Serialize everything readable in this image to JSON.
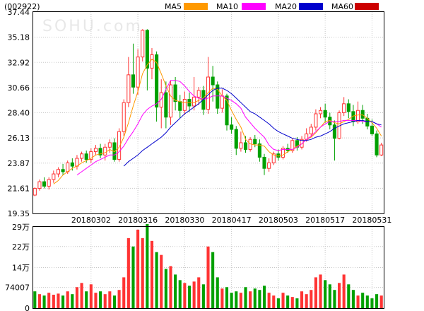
{
  "header": {
    "stock_code": "(002922)",
    "watermark": "SOHU.com"
  },
  "legend": [
    {
      "label": "MA5",
      "color": "#ff9900"
    },
    {
      "label": "MA10",
      "color": "#ff00ff"
    },
    {
      "label": "MA20",
      "color": "#0000cc"
    },
    {
      "label": "MA60",
      "color": "#cc0000"
    }
  ],
  "colors": {
    "up": "#ff3333",
    "down": "#00a000",
    "grid": "#c8c8c8",
    "border": "#000000"
  },
  "chart_data": [
    {
      "type": "candlestick",
      "title": "",
      "ylim": [
        19.35,
        37.44
      ],
      "y_ticks": [
        "37.44",
        "35.18",
        "32.92",
        "30.66",
        "28.40",
        "26.13",
        "23.87",
        "21.61",
        "19.35"
      ],
      "x_ticks": [
        {
          "label": "20180302",
          "index": 12
        },
        {
          "label": "20180316",
          "index": 22
        },
        {
          "label": "20180330",
          "index": 32
        },
        {
          "label": "20180417",
          "index": 42
        },
        {
          "label": "20180503",
          "index": 52
        },
        {
          "label": "20180517",
          "index": 62
        },
        {
          "label": "20180531",
          "index": 72
        }
      ],
      "candles": [
        [
          21.0,
          21.6,
          20.9,
          21.7
        ],
        [
          21.6,
          22.2,
          21.4,
          22.4
        ],
        [
          22.2,
          21.8,
          21.6,
          22.6
        ],
        [
          21.8,
          22.4,
          21.5,
          22.6
        ],
        [
          22.4,
          22.9,
          22.1,
          23.2
        ],
        [
          22.9,
          23.3,
          22.6,
          23.5
        ],
        [
          23.3,
          23.1,
          22.8,
          23.8
        ],
        [
          23.1,
          23.9,
          22.9,
          24.1
        ],
        [
          23.9,
          23.6,
          23.2,
          24.3
        ],
        [
          23.6,
          24.3,
          23.3,
          24.6
        ],
        [
          24.3,
          24.7,
          24.0,
          24.9
        ],
        [
          24.7,
          24.2,
          23.9,
          25.0
        ],
        [
          24.2,
          24.9,
          23.9,
          25.2
        ],
        [
          24.9,
          25.2,
          24.6,
          25.5
        ],
        [
          25.2,
          24.6,
          24.3,
          25.6
        ],
        [
          24.6,
          25.3,
          24.1,
          25.6
        ],
        [
          25.3,
          25.7,
          24.8,
          26.0
        ],
        [
          25.7,
          24.2,
          24.0,
          26.1
        ],
        [
          24.2,
          26.7,
          24.0,
          27.0
        ],
        [
          26.7,
          29.3,
          26.3,
          29.6
        ],
        [
          29.3,
          31.8,
          28.9,
          33.4
        ],
        [
          31.8,
          30.7,
          30.1,
          34.6
        ],
        [
          30.7,
          33.4,
          30.0,
          34.1
        ],
        [
          33.4,
          35.8,
          33.0,
          35.9
        ],
        [
          35.8,
          32.4,
          30.4,
          35.9
        ],
        [
          32.4,
          33.6,
          31.4,
          34.2
        ],
        [
          33.6,
          28.9,
          27.6,
          33.9
        ],
        [
          28.9,
          30.2,
          27.0,
          31.4
        ],
        [
          30.2,
          28.0,
          27.0,
          31.2
        ],
        [
          28.0,
          30.9,
          27.3,
          31.3
        ],
        [
          30.9,
          29.4,
          28.6,
          31.6
        ],
        [
          29.4,
          28.6,
          27.9,
          30.0
        ],
        [
          28.6,
          29.6,
          28.2,
          30.3
        ],
        [
          29.6,
          29.0,
          28.5,
          30.2
        ],
        [
          29.0,
          29.8,
          28.6,
          31.6
        ],
        [
          29.8,
          30.4,
          29.1,
          30.7
        ],
        [
          30.4,
          28.7,
          28.2,
          30.8
        ],
        [
          28.7,
          31.6,
          28.3,
          33.4
        ],
        [
          31.6,
          30.9,
          29.4,
          32.6
        ],
        [
          30.9,
          28.8,
          28.3,
          31.2
        ],
        [
          28.8,
          29.9,
          28.4,
          30.5
        ],
        [
          29.9,
          27.3,
          26.8,
          30.1
        ],
        [
          27.3,
          26.9,
          26.5,
          28.0
        ],
        [
          26.9,
          25.2,
          24.6,
          27.2
        ],
        [
          25.2,
          25.7,
          24.9,
          26.7
        ],
        [
          25.7,
          25.1,
          24.8,
          26.3
        ],
        [
          25.1,
          26.0,
          24.9,
          26.2
        ],
        [
          26.0,
          25.6,
          25.3,
          26.4
        ],
        [
          25.6,
          24.4,
          24.0,
          26.0
        ],
        [
          24.4,
          23.4,
          22.8,
          24.7
        ],
        [
          23.4,
          23.9,
          23.1,
          24.3
        ],
        [
          23.9,
          24.7,
          23.7,
          24.9
        ],
        [
          24.7,
          24.4,
          24.1,
          25.1
        ],
        [
          24.4,
          25.2,
          24.2,
          25.4
        ],
        [
          25.2,
          25.0,
          24.8,
          25.6
        ],
        [
          25.0,
          25.9,
          24.8,
          26.1
        ],
        [
          25.9,
          25.3,
          25.0,
          26.2
        ],
        [
          25.3,
          26.0,
          25.1,
          26.3
        ],
        [
          26.0,
          26.5,
          25.8,
          27.0
        ],
        [
          26.5,
          27.1,
          26.2,
          27.4
        ],
        [
          27.1,
          28.3,
          26.8,
          28.7
        ],
        [
          28.3,
          28.6,
          27.9,
          28.9
        ],
        [
          28.6,
          28.0,
          27.5,
          29.2
        ],
        [
          28.0,
          27.3,
          26.9,
          28.4
        ],
        [
          27.3,
          26.1,
          24.1,
          27.7
        ],
        [
          26.1,
          28.4,
          26.0,
          28.6
        ],
        [
          28.4,
          29.2,
          28.1,
          29.8
        ],
        [
          29.2,
          28.5,
          27.9,
          29.6
        ],
        [
          28.5,
          27.6,
          27.2,
          29.1
        ],
        [
          27.6,
          28.6,
          27.4,
          29.4
        ],
        [
          28.6,
          27.9,
          27.4,
          29.1
        ],
        [
          27.9,
          27.2,
          26.9,
          28.3
        ],
        [
          27.2,
          26.5,
          26.3,
          27.8
        ],
        [
          26.5,
          24.6,
          24.4,
          26.8
        ],
        [
          24.6,
          25.5,
          24.5,
          25.7
        ]
      ],
      "series": [
        {
          "name": "MA5",
          "values": [
            null,
            null,
            null,
            null,
            22.0,
            22.3,
            22.8,
            23.1,
            23.4,
            23.6,
            23.9,
            24.1,
            24.3,
            24.6,
            24.7,
            24.8,
            25.1,
            24.9,
            25.3,
            26.2,
            27.5,
            29.0,
            30.3,
            31.9,
            32.7,
            33.2,
            32.9,
            31.9,
            30.8,
            29.9,
            29.5,
            29.4,
            29.3,
            29.3,
            29.3,
            29.5,
            29.7,
            30.2,
            30.6,
            30.5,
            29.9,
            29.5,
            28.6,
            27.8,
            27.1,
            26.0,
            25.6,
            25.5,
            25.5,
            25.4,
            24.9,
            24.6,
            24.5,
            24.6,
            24.9,
            25.1,
            25.4,
            25.6,
            26.0,
            26.2,
            26.6,
            27.1,
            27.6,
            27.7,
            27.5,
            27.4,
            27.6,
            27.8,
            28.1,
            28.2,
            28.2,
            27.9,
            27.5,
            27.0,
            26.3
          ]
        },
        {
          "name": "MA10",
          "values": [
            null,
            null,
            null,
            null,
            null,
            null,
            null,
            null,
            null,
            22.8,
            23.1,
            23.4,
            23.7,
            24.0,
            24.2,
            24.4,
            24.6,
            24.6,
            24.9,
            25.4,
            26.1,
            26.7,
            27.4,
            28.2,
            28.7,
            29.0,
            29.2,
            29.6,
            30.5,
            31.3,
            31.3,
            31.2,
            30.8,
            30.3,
            29.9,
            29.7,
            29.6,
            29.7,
            29.9,
            29.9,
            29.9,
            29.7,
            29.5,
            29.2,
            28.8,
            28.0,
            27.5,
            27.0,
            26.6,
            26.2,
            25.5,
            25.1,
            25.0,
            25.1,
            25.1,
            25.1,
            25.3,
            25.6,
            26.0,
            26.3,
            26.7,
            27.1,
            27.4,
            27.6,
            27.6,
            27.6,
            27.7,
            27.7,
            27.7,
            27.7,
            27.6,
            27.6,
            27.6,
            27.4,
            27.1
          ]
        },
        {
          "name": "MA20",
          "values": [
            null,
            null,
            null,
            null,
            null,
            null,
            null,
            null,
            null,
            null,
            null,
            null,
            null,
            null,
            null,
            null,
            null,
            null,
            null,
            23.6,
            24.0,
            24.3,
            24.6,
            25.0,
            25.3,
            25.6,
            25.9,
            26.2,
            26.6,
            27.1,
            27.5,
            27.9,
            28.3,
            28.6,
            28.9,
            29.2,
            29.6,
            30.0,
            30.4,
            30.6,
            30.6,
            30.4,
            30.1,
            29.7,
            29.3,
            28.9,
            28.5,
            28.3,
            28.0,
            27.7,
            27.4,
            27.0,
            26.7,
            26.5,
            26.3,
            26.1,
            26.0,
            25.9,
            25.9,
            26.0,
            26.2,
            26.3,
            26.5,
            26.7,
            27.0,
            27.2,
            27.4,
            27.5,
            27.6,
            27.7,
            27.7,
            27.6,
            27.6,
            27.4,
            27.3
          ]
        },
        {
          "name": "MA60",
          "values": [
            null,
            null,
            null,
            null,
            null,
            null,
            null,
            null,
            null,
            null,
            null,
            null,
            null,
            null,
            null,
            null,
            null,
            null,
            null,
            null,
            null,
            null,
            null,
            null,
            null,
            null,
            null,
            null,
            null,
            null,
            null,
            null,
            null,
            null,
            null,
            null,
            null,
            null,
            null,
            null,
            null,
            null,
            null,
            null,
            null,
            null,
            null,
            null,
            null,
            null,
            null,
            null,
            null,
            null,
            null,
            null,
            null,
            null,
            null,
            null,
            null,
            null,
            null,
            null,
            null,
            null,
            null,
            null,
            null,
            null,
            null,
            null,
            null,
            null,
            null
          ]
        }
      ]
    },
    {
      "type": "bar",
      "title": "",
      "y_ticks": [
        "29万",
        "22万",
        "14万",
        "74007",
        "0"
      ],
      "ylim": [
        0,
        290000
      ],
      "values": [
        60000,
        50000,
        45000,
        55000,
        48000,
        52000,
        45000,
        60000,
        50000,
        75000,
        90000,
        60000,
        85000,
        55000,
        60000,
        50000,
        60000,
        45000,
        65000,
        110000,
        250000,
        220000,
        280000,
        250000,
        300000,
        240000,
        200000,
        190000,
        140000,
        150000,
        120000,
        100000,
        90000,
        80000,
        95000,
        110000,
        85000,
        220000,
        200000,
        110000,
        70000,
        75000,
        55000,
        60000,
        55000,
        75000,
        60000,
        70000,
        65000,
        80000,
        55000,
        45000,
        35000,
        55000,
        45000,
        40000,
        35000,
        60000,
        50000,
        65000,
        110000,
        120000,
        100000,
        85000,
        65000,
        90000,
        120000,
        85000,
        65000,
        45000,
        55000,
        45000,
        35000,
        50000,
        45000
      ],
      "directions": [
        "d",
        "u",
        "d",
        "u",
        "u",
        "u",
        "d",
        "u",
        "d",
        "u",
        "u",
        "d",
        "u",
        "u",
        "d",
        "u",
        "u",
        "d",
        "u",
        "u",
        "u",
        "d",
        "u",
        "u",
        "d",
        "u",
        "d",
        "u",
        "d",
        "u",
        "d",
        "d",
        "u",
        "d",
        "u",
        "u",
        "d",
        "u",
        "d",
        "d",
        "u",
        "d",
        "d",
        "d",
        "u",
        "d",
        "u",
        "d",
        "d",
        "d",
        "u",
        "u",
        "d",
        "u",
        "d",
        "u",
        "d",
        "u",
        "u",
        "u",
        "u",
        "u",
        "d",
        "d",
        "d",
        "u",
        "u",
        "d",
        "d",
        "u",
        "d",
        "d",
        "d",
        "d",
        "u"
      ]
    }
  ]
}
